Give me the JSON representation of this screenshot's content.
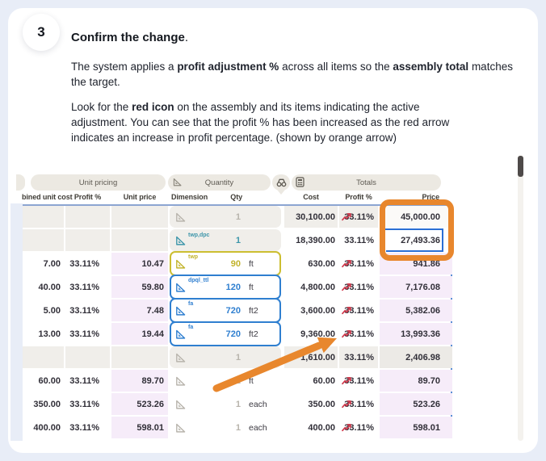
{
  "page": {
    "background": "#e8edf7",
    "card_background": "#ffffff"
  },
  "step": {
    "number": "3",
    "title": "Confirm the change",
    "title_suffix": ".",
    "paragraph1": [
      {
        "text": "The system applies a ",
        "bold": false
      },
      {
        "text": "profit adjustment %",
        "bold": true
      },
      {
        "text": " across all items so the ",
        "bold": false
      },
      {
        "text": "assembly total",
        "bold": true
      },
      {
        "text": " matches the target.",
        "bold": false
      }
    ],
    "paragraph2": [
      {
        "text": "Look for the ",
        "bold": false
      },
      {
        "text": "red icon",
        "bold": true
      },
      {
        "text": " on the assembly and its items indicating the active adjustment. You can see that the profit % has been increased as the red arrow indicates an increase in profit percentage. (shown by orange arrow)",
        "bold": false
      }
    ]
  },
  "screenshot": {
    "group_headers": {
      "unit_pricing": "Unit pricing",
      "quantity": "Quantity",
      "totals": "Totals"
    },
    "columns": {
      "combined_unit_cost": "bined unit cost",
      "profit_pct": "Profit %",
      "unit_price": "Unit price",
      "dimension": "Dimension",
      "qty": "Qty",
      "cost": "Cost",
      "profit_pct_totals": "Profit %",
      "price": "Price"
    },
    "rows": [
      {
        "unit_cost": "",
        "profit_pct": "",
        "unit_price": "",
        "dim_label": "",
        "dim_color": "gray",
        "dim_box": false,
        "dim_shade": false,
        "qty": "1",
        "unit": "",
        "cost": "30,100.00",
        "trend": true,
        "profit_pct2": "33.11%",
        "price": "45,000.00",
        "shade": true,
        "left_shade": false,
        "selected": false,
        "price_light": true
      },
      {
        "unit_cost": "",
        "profit_pct": "",
        "unit_price": "",
        "dim_label": "twp,dpc",
        "dim_color": "teal",
        "dim_box": false,
        "dim_shade": true,
        "qty": "1",
        "unit": "",
        "cost": "18,390.00",
        "trend": false,
        "profit_pct2": "33.11%",
        "price": "27,493.36",
        "shade": false,
        "left_shade": true,
        "selected": true,
        "price_light": false
      },
      {
        "unit_cost": "7.00",
        "profit_pct": "33.11%",
        "unit_price": "10.47",
        "dim_label": "twp",
        "dim_color": "yellow",
        "dim_box": true,
        "dim_shade": false,
        "qty": "90",
        "unit": "ft",
        "cost": "630.00",
        "trend": true,
        "profit_pct2": "33.11%",
        "price": "941.86",
        "shade": false,
        "left_shade": false,
        "selected": false,
        "price_light": false
      },
      {
        "unit_cost": "40.00",
        "profit_pct": "33.11%",
        "unit_price": "59.80",
        "dim_label": "dpql_ttl",
        "dim_color": "blue",
        "dim_box": true,
        "dim_shade": false,
        "qty": "120",
        "unit": "ft",
        "cost": "4,800.00",
        "trend": true,
        "profit_pct2": "33.11%",
        "price": "7,176.08",
        "shade": false,
        "left_shade": false,
        "selected": false,
        "price_light": false
      },
      {
        "unit_cost": "5.00",
        "profit_pct": "33.11%",
        "unit_price": "7.48",
        "dim_label": "fa",
        "dim_color": "blue",
        "dim_box": true,
        "dim_shade": false,
        "qty": "720",
        "unit": "ft2",
        "cost": "3,600.00",
        "trend": true,
        "profit_pct2": "33.11%",
        "price": "5,382.06",
        "shade": false,
        "left_shade": false,
        "selected": false,
        "price_light": false
      },
      {
        "unit_cost": "13.00",
        "profit_pct": "33.11%",
        "unit_price": "19.44",
        "dim_label": "fa",
        "dim_color": "blue",
        "dim_box": true,
        "dim_shade": false,
        "qty": "720",
        "unit": "ft2",
        "cost": "9,360.00",
        "trend": true,
        "profit_pct2": "33.11%",
        "price": "13,993.36",
        "shade": false,
        "left_shade": false,
        "selected": false,
        "price_light": false
      },
      {
        "unit_cost": "",
        "profit_pct": "",
        "unit_price": "",
        "dim_label": "",
        "dim_color": "gray",
        "dim_box": false,
        "dim_shade": false,
        "qty": "1",
        "unit": "",
        "cost": "1,610.00",
        "trend": false,
        "profit_pct2": "33.11%",
        "price": "2,406.98",
        "shade": true,
        "left_shade": false,
        "selected": false,
        "price_light": false
      },
      {
        "unit_cost": "60.00",
        "profit_pct": "33.11%",
        "unit_price": "89.70",
        "dim_label": "",
        "dim_color": "gray",
        "dim_box": false,
        "dim_shade": false,
        "qty": "1",
        "unit": "ft",
        "cost": "60.00",
        "trend": true,
        "profit_pct2": "33.11%",
        "price": "89.70",
        "shade": false,
        "left_shade": false,
        "selected": false,
        "price_light": false
      },
      {
        "unit_cost": "350.00",
        "profit_pct": "33.11%",
        "unit_price": "523.26",
        "dim_label": "",
        "dim_color": "gray",
        "dim_box": false,
        "dim_shade": false,
        "qty": "1",
        "unit": "each",
        "cost": "350.00",
        "trend": true,
        "profit_pct2": "33.11%",
        "price": "523.26",
        "shade": false,
        "left_shade": false,
        "selected": false,
        "price_light": false
      },
      {
        "unit_cost": "400.00",
        "profit_pct": "33.11%",
        "unit_price": "598.01",
        "dim_label": "",
        "dim_color": "gray",
        "dim_box": false,
        "dim_shade": false,
        "qty": "1",
        "unit": "each",
        "cost": "400.00",
        "trend": true,
        "profit_pct2": "33.11%",
        "price": "598.01",
        "shade": false,
        "left_shade": false,
        "selected": false,
        "price_light": false
      }
    ],
    "colors": {
      "highlight_orange": "#e8872d",
      "trend_red": "#d23a4d",
      "selection_blue": "#2b6fd4",
      "box_blue": "#2f7fd0",
      "box_yellow": "#ccbe31",
      "icon_teal": "#3e96aa",
      "pink_cell": "#f6ecf9",
      "shade_row": "#f0eeea",
      "pill_beige": "#ece9e2"
    }
  }
}
